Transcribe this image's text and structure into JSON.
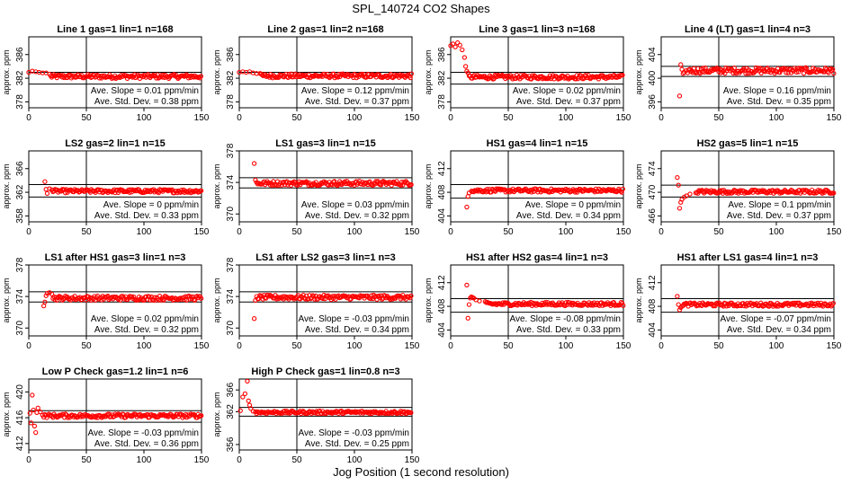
{
  "title": "SPL_140724  CO2 Shapes",
  "x_axis_title": "Jog Position (1 second resolution)",
  "y_axis_label": "approx. ppm",
  "slope_prefix": "Ave. Slope = ",
  "slope_suffix": " ppm/min",
  "std_prefix": "Ave. Std. Dev. = ",
  "std_suffix": " ppm",
  "colors": {
    "points": "#ff0000",
    "axes": "#000000",
    "background": "#ffffff"
  },
  "chart_data": [
    {
      "type": "scatter",
      "title": "Line 1 gas=1 lin=1 n=168",
      "xlim": [
        0,
        150
      ],
      "ylim": [
        377,
        389
      ],
      "yticks": [
        378,
        382,
        386
      ],
      "xticks": [
        0,
        50,
        100,
        150
      ],
      "hlines": [
        383,
        381
      ],
      "vline": 50,
      "ave_slope": "0.01",
      "ave_std": "0.38",
      "base": 382.3,
      "spread": 0.35,
      "transient": [
        [
          0,
          383
        ],
        [
          3,
          383.2
        ],
        [
          6,
          383.1
        ],
        [
          9,
          383
        ],
        [
          12,
          382.9
        ],
        [
          15,
          382.9
        ],
        [
          18,
          382.7
        ]
      ]
    },
    {
      "type": "scatter",
      "title": "Line 2 gas=1 lin=2 n=168",
      "xlim": [
        0,
        150
      ],
      "ylim": [
        377,
        389
      ],
      "yticks": [
        378,
        382,
        386
      ],
      "xticks": [
        0,
        50,
        100,
        150
      ],
      "hlines": [
        383,
        381
      ],
      "vline": 50,
      "ave_slope": "0.12",
      "ave_std": "0.37",
      "base": 382.4,
      "spread": 0.35,
      "transient": [
        [
          0,
          383
        ],
        [
          3,
          383.1
        ],
        [
          6,
          383
        ],
        [
          9,
          383.1
        ],
        [
          12,
          382.9
        ],
        [
          15,
          382.8
        ],
        [
          18,
          382.8
        ]
      ]
    },
    {
      "type": "scatter",
      "title": "Line 3 gas=1 lin=3 n=168",
      "xlim": [
        0,
        150
      ],
      "ylim": [
        377,
        389
      ],
      "yticks": [
        378,
        382,
        386
      ],
      "xticks": [
        0,
        50,
        100,
        150
      ],
      "hlines": [
        383,
        381
      ],
      "vline": 50,
      "ave_slope": "0.02",
      "ave_std": "0.37",
      "base": 382.2,
      "spread": 0.35,
      "transient": [
        [
          0,
          387.5
        ],
        [
          2,
          387.8
        ],
        [
          4,
          387.3
        ],
        [
          6,
          388
        ],
        [
          8,
          387.6
        ],
        [
          10,
          386.8
        ],
        [
          12,
          385.5
        ],
        [
          13,
          384
        ],
        [
          14,
          383.2
        ],
        [
          15,
          382.9
        ]
      ]
    },
    {
      "type": "scatter",
      "title": "Line 4 (LT) gas=1 lin=4 n=3",
      "xlim": [
        0,
        150
      ],
      "ylim": [
        395,
        407
      ],
      "yticks": [
        396,
        400,
        404
      ],
      "xticks": [
        0,
        50,
        100,
        150
      ],
      "hlines": [
        402,
        400.3
      ],
      "vline": 50,
      "ave_slope": "0.16",
      "ave_std": "0.35",
      "base": 401.3,
      "spread": 0.5,
      "transient": [
        [
          16,
          397
        ],
        [
          17,
          402.3
        ],
        [
          18,
          401.5
        ],
        [
          19,
          400.8
        ],
        [
          20,
          401
        ],
        [
          22,
          401.3
        ]
      ]
    },
    {
      "type": "scatter",
      "title": "LS2 gas=2 lin=1 n=15",
      "xlim": [
        0,
        150
      ],
      "ylim": [
        357,
        369
      ],
      "yticks": [
        358,
        362,
        366
      ],
      "xticks": [
        0,
        50,
        100,
        150
      ],
      "hlines": [
        363.3,
        361.2
      ],
      "vline": 50,
      "ave_slope": "0",
      "ave_std": "0.33",
      "base": 362.2,
      "spread": 0.3,
      "transient": [
        [
          14,
          363.8
        ],
        [
          15,
          362.5
        ],
        [
          16,
          361.8
        ],
        [
          18,
          362.6
        ],
        [
          20,
          362.4
        ]
      ]
    },
    {
      "type": "scatter",
      "title": "LS1 gas=3 lin=1 n=15",
      "xlim": [
        0,
        150
      ],
      "ylim": [
        369,
        378
      ],
      "yticks": [
        370,
        374,
        378
      ],
      "xticks": [
        0,
        50,
        100,
        150
      ],
      "hlines": [
        374.6,
        373.3
      ],
      "vline": 50,
      "ave_slope": "0.03",
      "ave_std": "0.32",
      "base": 373.9,
      "spread": 0.28,
      "transient": [
        [
          13,
          376.4
        ],
        [
          14,
          374.3
        ],
        [
          15,
          374
        ],
        [
          16,
          373.8
        ]
      ]
    },
    {
      "type": "scatter",
      "title": "HS1 gas=4 lin=1 n=15",
      "xlim": [
        0,
        150
      ],
      "ylim": [
        403,
        415
      ],
      "yticks": [
        404,
        408,
        412
      ],
      "xticks": [
        0,
        50,
        100,
        150
      ],
      "hlines": [
        409.3,
        407
      ],
      "vline": 50,
      "ave_slope": "0",
      "ave_std": "0.34",
      "base": 408.3,
      "spread": 0.3,
      "transient": [
        [
          14,
          405.5
        ],
        [
          15,
          407.3
        ],
        [
          16,
          407.9
        ],
        [
          18,
          408.2
        ]
      ]
    },
    {
      "type": "scatter",
      "title": "HS2 gas=5 lin=1 n=15",
      "xlim": [
        0,
        150
      ],
      "ylim": [
        465,
        477
      ],
      "yticks": [
        466,
        470,
        474
      ],
      "xticks": [
        0,
        50,
        100,
        150
      ],
      "hlines": [
        471.2,
        469.2
      ],
      "vline": 50,
      "ave_slope": "0.1",
      "ave_std": "0.37",
      "base": 470.1,
      "spread": 0.3,
      "transient": [
        [
          14,
          472.5
        ],
        [
          15,
          471.2
        ],
        [
          16,
          467.3
        ],
        [
          17,
          468.3
        ],
        [
          18,
          468.8
        ],
        [
          20,
          469.2
        ],
        [
          22,
          469.4
        ],
        [
          25,
          469.7
        ],
        [
          30,
          469.9
        ]
      ]
    },
    {
      "type": "scatter",
      "title": "LS1 after HS1 gas=3 lin=1 n=3",
      "xlim": [
        0,
        150
      ],
      "ylim": [
        369,
        378
      ],
      "yticks": [
        370,
        374,
        378
      ],
      "xticks": [
        0,
        50,
        100,
        150
      ],
      "hlines": [
        374.6,
        373.3
      ],
      "vline": 50,
      "ave_slope": "0.02",
      "ave_std": "0.32",
      "base": 373.8,
      "spread": 0.28,
      "transient": [
        [
          13,
          372.8
        ],
        [
          14,
          373.3
        ],
        [
          15,
          374.1
        ],
        [
          16,
          374.4
        ],
        [
          18,
          374.5
        ],
        [
          20,
          374.3
        ]
      ]
    },
    {
      "type": "scatter",
      "title": "LS1 after LS2 gas=3 lin=1 n=3",
      "xlim": [
        0,
        150
      ],
      "ylim": [
        369,
        378
      ],
      "yticks": [
        370,
        374,
        378
      ],
      "xticks": [
        0,
        50,
        100,
        150
      ],
      "hlines": [
        374.6,
        373.3
      ],
      "vline": 50,
      "ave_slope": "-0.03",
      "ave_std": "0.34",
      "base": 373.9,
      "spread": 0.28,
      "transient": [
        [
          13,
          371.2
        ],
        [
          14,
          373.5
        ],
        [
          15,
          374
        ]
      ]
    },
    {
      "type": "scatter",
      "title": "HS1 after HS2 gas=4 lin=1 n=3",
      "xlim": [
        0,
        150
      ],
      "ylim": [
        403,
        415
      ],
      "yticks": [
        404,
        408,
        412
      ],
      "xticks": [
        0,
        50,
        100,
        150
      ],
      "hlines": [
        409.3,
        407
      ],
      "vline": 50,
      "ave_slope": "-0.08",
      "ave_std": "0.33",
      "base": 408.4,
      "spread": 0.3,
      "transient": [
        [
          14,
          411.6
        ],
        [
          15,
          406
        ],
        [
          16,
          408.3
        ],
        [
          17,
          409.4
        ],
        [
          18,
          409.6
        ],
        [
          19,
          409.5
        ],
        [
          20,
          409.4
        ],
        [
          22,
          409.1
        ],
        [
          25,
          408.9
        ],
        [
          30,
          408.8
        ]
      ]
    },
    {
      "type": "scatter",
      "title": "HS1 after LS1 gas=4 lin=1 n=3",
      "xlim": [
        0,
        150
      ],
      "ylim": [
        403,
        415
      ],
      "yticks": [
        404,
        408,
        412
      ],
      "xticks": [
        0,
        50,
        100,
        150
      ],
      "hlines": [
        409.3,
        407
      ],
      "vline": 50,
      "ave_slope": "-0.07",
      "ave_std": "0.34",
      "base": 408.3,
      "spread": 0.3,
      "transient": [
        [
          14,
          409.7
        ],
        [
          15,
          408.3
        ],
        [
          16,
          407.4
        ],
        [
          17,
          407.8
        ],
        [
          18,
          408
        ]
      ]
    },
    {
      "type": "scatter",
      "title": "Low P Check gas=1.2 lin=1 n=6",
      "xlim": [
        0,
        150
      ],
      "ylim": [
        411,
        422
      ],
      "yticks": [
        412,
        416,
        420
      ],
      "xticks": [
        0,
        50,
        100,
        150
      ],
      "hlines": [
        417.1,
        415.3
      ],
      "vline": 50,
      "ave_slope": "-0.03",
      "ave_std": "0.36",
      "base": 416.3,
      "spread": 0.3,
      "transient": [
        [
          1,
          416.7
        ],
        [
          2,
          415.2
        ],
        [
          3,
          419.5
        ],
        [
          4,
          417.2
        ],
        [
          5,
          414.7
        ],
        [
          6,
          413.7
        ],
        [
          7,
          416.8
        ],
        [
          8,
          417.5
        ],
        [
          10,
          416.9
        ],
        [
          12,
          416.4
        ]
      ]
    },
    {
      "type": "scatter",
      "title": "High P Check gas=1 lin=0.8 n=3",
      "xlim": [
        0,
        150
      ],
      "ylim": [
        355,
        368
      ],
      "yticks": [
        356,
        362,
        366
      ],
      "xticks": [
        0,
        50,
        100,
        150
      ],
      "hlines": [
        362.8,
        361.2
      ],
      "vline": 50,
      "ave_slope": "-0.03",
      "ave_std": "0.25",
      "base": 361.9,
      "spread": 0.25,
      "transient": [
        [
          1,
          362.2
        ],
        [
          3,
          364.7
        ],
        [
          5,
          365.3
        ],
        [
          7,
          367.6
        ],
        [
          8,
          364
        ],
        [
          9,
          363.2
        ],
        [
          10,
          362.6
        ],
        [
          12,
          362.1
        ],
        [
          14,
          362
        ]
      ]
    }
  ]
}
